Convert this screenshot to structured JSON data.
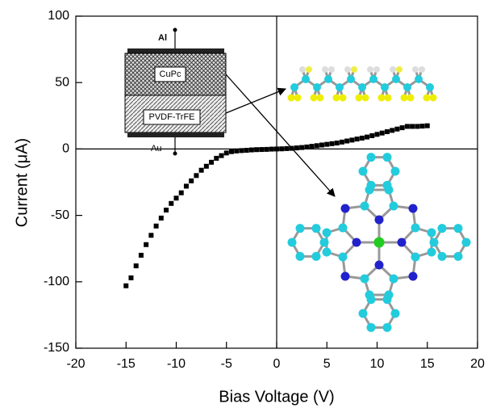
{
  "chart_data": {
    "type": "scatter",
    "x_label": "Bias Voltage (V)",
    "y_label": "Current (μA)",
    "annotations": [
      "Al",
      "CuPc",
      "PVDF-TrFE",
      "Au"
    ],
    "color": "#000000",
    "x": [
      -15,
      -14.5,
      -14,
      -13.5,
      -13,
      -12.5,
      -12,
      -11.5,
      -11,
      -10.5,
      -10,
      -9.5,
      -9,
      -8.5,
      -8,
      -7.5,
      -7,
      -6.5,
      -6,
      -5.5,
      -5,
      -4.5,
      -4,
      -3.5,
      -3,
      -2.5,
      -2,
      -1.5,
      -1,
      -0.5,
      0,
      0.5,
      1,
      1.5,
      2,
      2.5,
      3,
      3.5,
      4,
      4.5,
      5,
      5.5,
      6,
      6.5,
      7,
      7.5,
      8,
      8.5,
      9,
      9.5,
      10,
      10.5,
      11,
      11.5,
      12,
      12.5,
      13,
      13.5,
      14,
      14.5,
      15
    ],
    "values": [
      -103,
      -97,
      -88,
      -80,
      -72,
      -65,
      -58,
      -52,
      -46,
      -41,
      -37,
      -33,
      -28,
      -24,
      -20,
      -16,
      -13,
      -10,
      -7,
      -5,
      -3,
      -2,
      -1.5,
      -1.2,
      -1,
      -0.7,
      -0.5,
      -0.4,
      -0.3,
      -0.1,
      0,
      0.1,
      0.3,
      0.5,
      0.8,
      1.1,
      1.5,
      2,
      2.5,
      3,
      3.5,
      4,
      4.5,
      5.2,
      6,
      6.7,
      7.5,
      8.2,
      9,
      10,
      11,
      12,
      13,
      14,
      15,
      16,
      17,
      17,
      17,
      17.2,
      17.5
    ],
    "xlim": [
      -20,
      20
    ],
    "ylim": [
      -150,
      100
    ],
    "xticks": [
      -20,
      -15,
      -10,
      -5,
      0,
      5,
      10,
      15,
      20
    ],
    "yticks": [
      -150,
      -100,
      -50,
      0,
      50,
      100
    ]
  }
}
